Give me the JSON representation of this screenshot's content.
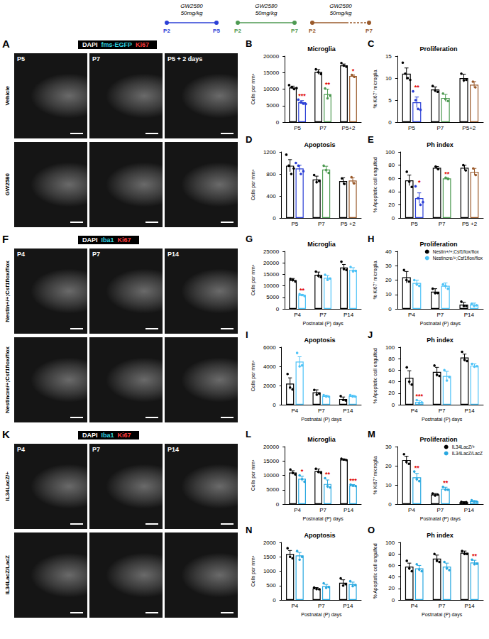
{
  "schematic": [
    {
      "drug": "GW2580",
      "dose": "50mg/kg",
      "start": "P2",
      "end": "P5",
      "color": "#2b3fd6"
    },
    {
      "drug": "GW2580",
      "dose": "50mg/kg",
      "start": "P2",
      "end": "P7",
      "color": "#4e9a52"
    },
    {
      "drug": "GW2580",
      "dose": "50mg/kg",
      "start": "P2",
      "end": "P7",
      "color": "#9a5a2b",
      "line_style": "dashed"
    }
  ],
  "image_panels": [
    {
      "panel_label": "A",
      "channels": [
        "DAPI",
        "fms-EGFP",
        "Ki67"
      ],
      "columns": [
        "P5",
        "P7",
        "P5 + 2 days"
      ],
      "rows": [
        "Vehicle",
        "GW2580"
      ]
    },
    {
      "panel_label": "F",
      "channels": [
        "DAPI",
        "Iba1",
        "Ki67"
      ],
      "columns": [
        "P4",
        "P7",
        "P14"
      ],
      "rows": [
        "Nestin+/+;Csf1flox/flox",
        "Nestincre/+;Csf1flox/flox"
      ]
    },
    {
      "panel_label": "K",
      "channels": [
        "DAPI",
        "Iba1",
        "Ki67"
      ],
      "columns": [
        "P4",
        "P7",
        "P14"
      ],
      "rows": [
        "IL34LacZ/+",
        "IL34LacZ/LacZ"
      ]
    }
  ],
  "chart_data": [
    {
      "panel_label": "B",
      "type": "bar",
      "title": "Microglia",
      "y_label": "Cells per mm³",
      "categories": [
        "P5",
        "P7",
        "P5+2"
      ],
      "ylim": [
        0,
        20000
      ],
      "yticks": [
        0,
        5000,
        10000,
        15000,
        20000
      ],
      "grid": false,
      "series": [
        {
          "color": "#000000",
          "values": [
            10500,
            15200,
            17200
          ],
          "errors": [
            400,
            700,
            400
          ],
          "points": [
            [
              11200,
              10600,
              10000,
              10300
            ],
            [
              16000,
              15100,
              14600
            ],
            [
              17900,
              17100,
              16800
            ]
          ]
        },
        {
          "colors": [
            "#2b3fd6",
            "#4e9a52",
            "#9a5a2b"
          ],
          "values": [
            6000,
            8500,
            14000
          ],
          "errors": [
            500,
            1500,
            300
          ],
          "points": [
            [
              6800,
              6000,
              5600,
              5500
            ],
            [
              10200,
              7200,
              8000
            ],
            [
              14300,
              13700
            ]
          ],
          "significance": [
            "***",
            "**",
            "*"
          ]
        }
      ]
    },
    {
      "panel_label": "C",
      "type": "bar",
      "title": "Proliferation",
      "y_label": "% Ki67⁺ microglia",
      "categories": [
        "P5",
        "P7",
        "P5+2"
      ],
      "ylim": [
        0,
        15
      ],
      "yticks": [
        0,
        5,
        10,
        15
      ],
      "grid": false,
      "series": [
        {
          "color": "#000000",
          "values": [
            11,
            7.4,
            10
          ],
          "errors": [
            1.3,
            0.6,
            0.9
          ],
          "points": [
            [
              13.5,
              11,
              10,
              9.6
            ],
            [
              8.2,
              7.2,
              6.9
            ],
            [
              11,
              9.5,
              9.6
            ]
          ]
        },
        {
          "colors": [
            "#2b3fd6",
            "#4e9a52",
            "#9a5a2b"
          ],
          "values": [
            4.5,
            5.5,
            8.5
          ],
          "errors": [
            1.2,
            0.8,
            0.7
          ],
          "points": [
            [
              7,
              5,
              3,
              2.8
            ],
            [
              6.5,
              5.2,
              4.8
            ],
            [
              9.2,
              7.9
            ]
          ],
          "significance": [
            "**",
            null,
            null
          ]
        }
      ]
    },
    {
      "panel_label": "D",
      "type": "bar",
      "title": "Apoptosis",
      "y_label": "Cells per mm³",
      "categories": [
        "P5",
        "P7",
        "P5 +2"
      ],
      "ylim": [
        0,
        1200
      ],
      "yticks": [
        0,
        400,
        800,
        1200
      ],
      "grid": false,
      "series": [
        {
          "color": "#000000",
          "values": [
            950,
            700,
            670
          ],
          "errors": [
            110,
            60,
            60
          ],
          "points": [
            [
              1150,
              950,
              800,
              900
            ],
            [
              780,
              650,
              680
            ],
            [
              720,
              620
            ]
          ]
        },
        {
          "colors": [
            "#2b3fd6",
            "#4e9a52",
            "#9a5a2b"
          ],
          "values": [
            900,
            880,
            680
          ],
          "errors": [
            60,
            60,
            50
          ],
          "points": [
            [
              1000,
              950,
              800,
              850
            ],
            [
              950,
              870,
              820
            ],
            [
              740,
              630
            ]
          ]
        }
      ]
    },
    {
      "panel_label": "E",
      "type": "bar",
      "title": "Ph index",
      "y_label": "% Apoptotic cell engulfed",
      "categories": [
        "P5",
        "P7",
        "P5 +2"
      ],
      "ylim": [
        0,
        100
      ],
      "yticks": [
        0,
        20,
        40,
        60,
        80,
        100
      ],
      "grid": false,
      "series": [
        {
          "color": "#000000",
          "values": [
            57,
            76,
            76
          ],
          "errors": [
            8,
            2,
            4
          ],
          "points": [
            [
              70,
              55,
              47
            ],
            [
              78,
              74
            ],
            [
              80,
              72
            ]
          ]
        },
        {
          "colors": [
            "#2b3fd6",
            "#4e9a52",
            "#9a5a2b"
          ],
          "values": [
            30,
            60,
            70
          ],
          "errors": [
            8,
            1,
            5
          ],
          "points": [
            [
              48,
              30,
              20,
              24
            ],
            [
              61,
              59
            ],
            [
              75,
              65
            ]
          ],
          "significance": [
            "*",
            "**",
            null
          ]
        }
      ]
    },
    {
      "panel_label": "G",
      "type": "bar",
      "title": "Microglia",
      "y_label": "Cells per mm³",
      "x_label": "Postnatal (P) days",
      "categories": [
        "P4",
        "P7",
        "P14"
      ],
      "ylim": [
        0,
        25000
      ],
      "yticks": [
        0,
        5000,
        10000,
        15000,
        20000,
        25000
      ],
      "grid": false,
      "series": [
        {
          "color": "#000000",
          "values": [
            12500,
            14800,
            18000
          ],
          "errors": [
            700,
            1200,
            1300
          ],
          "points": [
            [
              13000,
              12600,
              11900
            ],
            [
              16200,
              14400,
              13800
            ],
            [
              20500,
              17300,
              16900
            ]
          ]
        },
        {
          "color": "#4fc3f7",
          "values": [
            6000,
            13500,
            17000
          ],
          "errors": [
            300,
            1000,
            900
          ],
          "points": [
            [
              6400,
              6000,
              5600
            ],
            [
              14800,
              12600,
              13200
            ],
            [
              18200,
              16300,
              16500
            ]
          ],
          "significance": [
            "**",
            null,
            null
          ]
        }
      ]
    },
    {
      "panel_label": "H",
      "type": "bar",
      "title": "Proliferation",
      "y_label": "% Ki67⁺ microglia",
      "x_label": "Postnatal (P) days",
      "categories": [
        "P4",
        "P7",
        "P14"
      ],
      "ylim": [
        0,
        40
      ],
      "yticks": [
        0,
        10,
        20,
        30,
        40
      ],
      "grid": false,
      "legend": "upper right",
      "series": [
        {
          "name": "Nestin+/+;Csf1flox/flox",
          "color": "#000000",
          "values": [
            22,
            12,
            3
          ],
          "errors": [
            4,
            2,
            1.5
          ],
          "points": [
            [
              27,
              20,
              19
            ],
            [
              14,
              11,
              11
            ],
            [
              5,
              2,
              2
            ]
          ]
        },
        {
          "name": "Nestincre/+;Csf1flox/flox",
          "color": "#4fc3f7",
          "values": [
            18,
            16,
            3
          ],
          "errors": [
            2,
            2,
            1
          ],
          "points": [
            [
              20,
              17,
              16
            ],
            [
              17,
              16,
              14
            ],
            [
              3.5,
              2,
              2.5
            ]
          ]
        }
      ]
    },
    {
      "panel_label": "I",
      "type": "bar",
      "title": "Apoptosis",
      "y_label": "Cells per mm³",
      "x_label": "Postnatal (P) days",
      "categories": [
        "P4",
        "P7",
        "P14"
      ],
      "ylim": [
        0,
        6000
      ],
      "yticks": [
        0,
        2000,
        4000,
        6000
      ],
      "grid": false,
      "series": [
        {
          "color": "#000000",
          "values": [
            2200,
            1300,
            600
          ],
          "errors": [
            600,
            250,
            200
          ],
          "points": [
            [
              3200,
              1800,
              1600
            ],
            [
              1600,
              1100,
              1200
            ],
            [
              900,
              500,
              450
            ]
          ]
        },
        {
          "color": "#4fc3f7",
          "values": [
            4500,
            900,
            900
          ],
          "errors": [
            500,
            100,
            100
          ],
          "points": [
            [
              5400,
              4000,
              4100
            ],
            [
              1000,
              850,
              850
            ],
            [
              1000,
              850,
              850
            ]
          ]
        }
      ]
    },
    {
      "panel_label": "J",
      "type": "bar",
      "title": "Ph index",
      "y_label": "% Apoptotic cell engulfed",
      "x_label": "Postnatal (P) days",
      "categories": [
        "P4",
        "P7",
        "P14"
      ],
      "ylim": [
        0,
        100
      ],
      "yticks": [
        0,
        20,
        40,
        60,
        80,
        100
      ],
      "grid": false,
      "series": [
        {
          "color": "#000000",
          "values": [
            47,
            57,
            82
          ],
          "errors": [
            12,
            8,
            6
          ],
          "points": [
            [
              65,
              40,
              35
            ],
            [
              68,
              52,
              50
            ],
            [
              92,
              78,
              76
            ]
          ]
        },
        {
          "color": "#4fc3f7",
          "values": [
            5,
            50,
            68
          ],
          "errors": [
            2,
            8,
            3
          ],
          "points": [
            [
              8,
              3,
              4
            ],
            [
              60,
              42,
              48
            ],
            [
              71,
              66,
              67
            ]
          ],
          "significance": [
            "***",
            null,
            null
          ]
        }
      ]
    },
    {
      "panel_label": "L",
      "type": "bar",
      "title": "Microglia",
      "y_label": "Cells per mm³",
      "x_label": "Postnatal (P) days",
      "categories": [
        "P4",
        "P7",
        "P14"
      ],
      "ylim": [
        0,
        20000
      ],
      "yticks": [
        0,
        5000,
        10000,
        15000,
        20000
      ],
      "grid": false,
      "series": [
        {
          "color": "#000000",
          "values": [
            11000,
            11500,
            15500
          ],
          "errors": [
            600,
            700,
            200
          ],
          "points": [
            [
              12000,
              10800,
              10300
            ],
            [
              12300,
              11200,
              10900
            ],
            [
              15800,
              15500,
              15300
            ]
          ]
        },
        {
          "color": "#29a8e0",
          "values": [
            8800,
            7000,
            6500
          ],
          "errors": [
            900,
            1400,
            300
          ],
          "points": [
            [
              10000,
              8700,
              7800
            ],
            [
              9000,
              6200,
              5800
            ],
            [
              6800,
              6400,
              6300
            ]
          ],
          "significance": [
            "*",
            "**",
            "***"
          ]
        }
      ]
    },
    {
      "panel_label": "M",
      "type": "bar",
      "title": "Proliferation",
      "y_label": "% Ki67⁺ microglia",
      "x_label": "Postnatal (P) days",
      "categories": [
        "P4",
        "P7",
        "P14"
      ],
      "ylim": [
        0,
        30
      ],
      "yticks": [
        0,
        10,
        20,
        30
      ],
      "grid": false,
      "legend": "upper right",
      "series": [
        {
          "name": "IL34LacZ/+",
          "color": "#000000",
          "values": [
            23,
            5,
            1
          ],
          "errors": [
            2,
            0.5,
            0.3
          ],
          "points": [
            [
              26,
              22,
              21
            ],
            [
              5.5,
              4.5,
              5
            ],
            [
              1.2,
              0.8,
              1
            ]
          ]
        },
        {
          "name": "IL34LacZ/LacZ",
          "color": "#29a8e0",
          "values": [
            14,
            8,
            1.5
          ],
          "errors": [
            2,
            0.8,
            0.4
          ],
          "points": [
            [
              17,
              13,
              12
            ],
            [
              9,
              7.5,
              7.5
            ],
            [
              2,
              1.2,
              1.3
            ]
          ],
          "significance": [
            "**",
            "**",
            null
          ]
        }
      ]
    },
    {
      "panel_label": "N",
      "type": "bar",
      "title": "Apoptosis",
      "y_label": "Cells per mm³",
      "x_label": "Postnatal (P) days",
      "categories": [
        "P4",
        "P7",
        "P14"
      ],
      "ylim": [
        0,
        2000
      ],
      "yticks": [
        0,
        500,
        1000,
        1500,
        2000
      ],
      "grid": false,
      "series": [
        {
          "color": "#000000",
          "values": [
            1600,
            400,
            600
          ],
          "errors": [
            120,
            30,
            100
          ],
          "points": [
            [
              1800,
              1500,
              1450
            ],
            [
              430,
              380,
              390
            ],
            [
              750,
              500,
              550
            ]
          ]
        },
        {
          "color": "#29a8e0",
          "values": [
            1550,
            480,
            550
          ],
          "errors": [
            100,
            60,
            70
          ],
          "points": [
            [
              1700,
              1400,
              1500
            ],
            [
              580,
              420,
              450
            ],
            [
              650,
              480,
              520
            ]
          ]
        }
      ]
    },
    {
      "panel_label": "O",
      "type": "bar",
      "title": "Ph index",
      "y_label": "% Apoptotic cell engulfed",
      "x_label": "Postnatal (P) days",
      "categories": [
        "P4",
        "P7",
        "P14"
      ],
      "ylim": [
        0,
        100
      ],
      "yticks": [
        0,
        20,
        40,
        60,
        80,
        100
      ],
      "grid": false,
      "series": [
        {
          "color": "#000000",
          "values": [
            58,
            72,
            82
          ],
          "errors": [
            6,
            6,
            3
          ],
          "points": [
            [
              68,
              55,
              50
            ],
            [
              80,
              68,
              66
            ],
            [
              85,
              80,
              80
            ]
          ]
        },
        {
          "color": "#29a8e0",
          "values": [
            55,
            58,
            65
          ],
          "errors": [
            5,
            6,
            4
          ],
          "points": [
            [
              62,
              53,
              50
            ],
            [
              66,
              55,
              52
            ],
            [
              70,
              62,
              63
            ]
          ],
          "significance": [
            null,
            null,
            "**"
          ]
        }
      ]
    }
  ]
}
